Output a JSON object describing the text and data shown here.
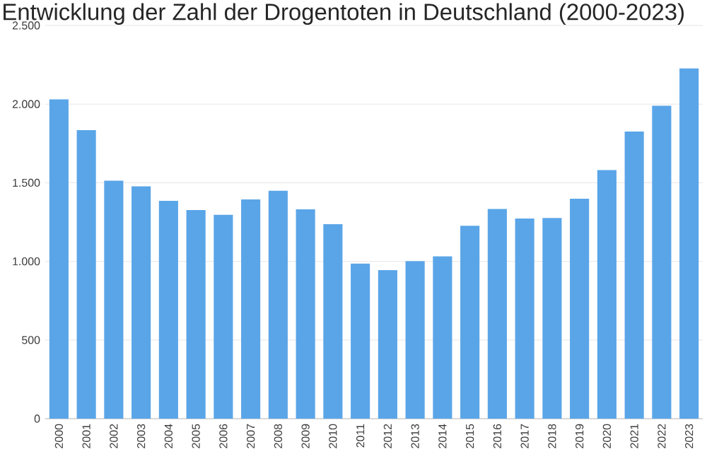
{
  "chart_data": {
    "type": "bar",
    "title": "Entwicklung der Zahl der Drogentoten in Deutschland (2000-2023)",
    "categories": [
      "2000",
      "2001",
      "2002",
      "2003",
      "2004",
      "2005",
      "2006",
      "2007",
      "2008",
      "2009",
      "2010",
      "2011",
      "2012",
      "2013",
      "2014",
      "2015",
      "2016",
      "2017",
      "2018",
      "2019",
      "2020",
      "2021",
      "2022",
      "2023"
    ],
    "values": [
      2030,
      1835,
      1513,
      1477,
      1385,
      1326,
      1296,
      1394,
      1449,
      1331,
      1237,
      986,
      944,
      1002,
      1032,
      1226,
      1333,
      1272,
      1276,
      1398,
      1581,
      1826,
      1990,
      2227
    ],
    "color": "#5aa5e8",
    "ylim": [
      0,
      2500
    ],
    "yticks": [
      0,
      500,
      {
        "value": 1000,
        "label": "1.000"
      },
      {
        "value": 1500,
        "label": "1.500"
      },
      {
        "value": 2000,
        "label": "2.000"
      },
      {
        "value": 2500,
        "label": "2.500"
      }
    ],
    "grid": "y"
  }
}
